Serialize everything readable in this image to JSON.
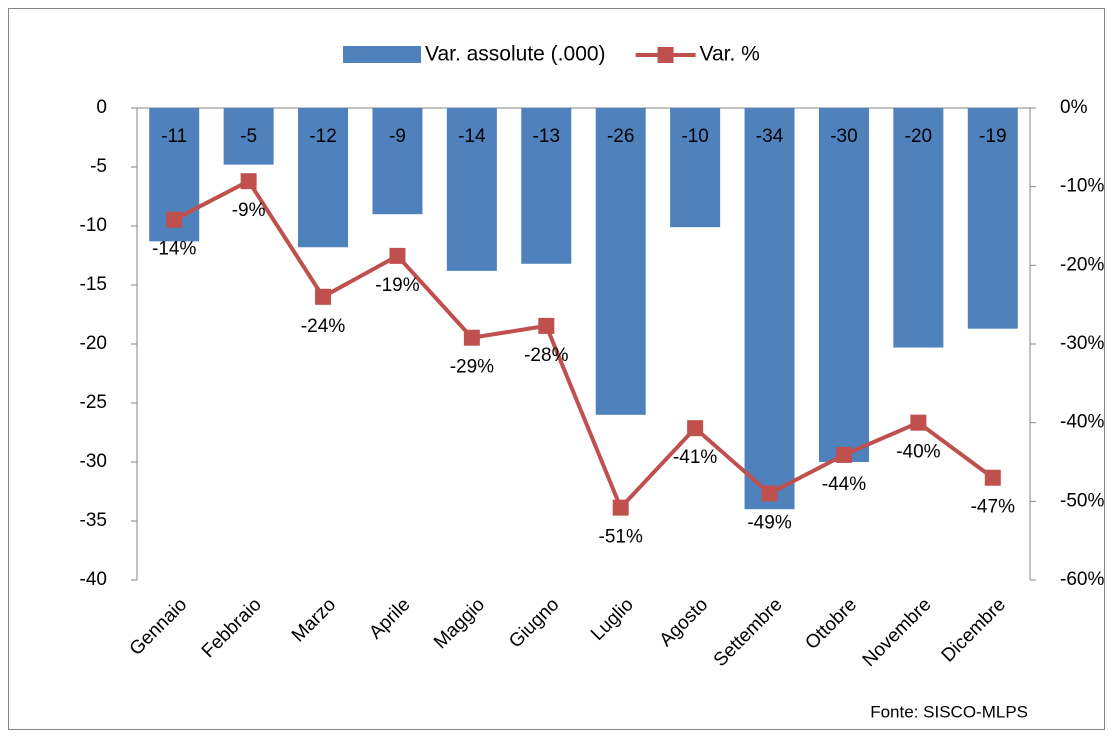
{
  "chart_data": {
    "type": "bar_line",
    "categories": [
      "Gennaio",
      "Febbraio",
      "Marzo",
      "Aprile",
      "Maggio",
      "Giugno",
      "Luglio",
      "Agosto",
      "Settembre",
      "Ottobre",
      "Novembre",
      "Dicembre"
    ],
    "series": [
      {
        "name": "Var. assolute (.000)",
        "color": "#4f81bd",
        "type": "bar",
        "values": [
          -11.3,
          -4.8,
          -11.8,
          -9,
          -13.8,
          -13.2,
          -26,
          -10.1,
          -34,
          -30,
          -20.3,
          -18.7
        ],
        "value_labels": [
          "-11",
          "-5",
          "-12",
          "-9",
          "-14",
          "-13",
          "-26",
          "-10",
          "-34",
          "-30",
          "-20",
          "-19"
        ]
      },
      {
        "name": "Var. %",
        "color": "#c0504d",
        "type": "line",
        "axis": "y2",
        "values": [
          -14.2,
          -9.3,
          -24,
          -18.8,
          -29.2,
          -27.7,
          -50.8,
          -40.7,
          -49,
          -44.1,
          -40,
          -47
        ],
        "value_labels": [
          "-14%",
          "-9%",
          "-24%",
          "-19%",
          "-29%",
          "-28%",
          "-51%",
          "-41%",
          "-49%",
          "-44%",
          "-40%",
          "-47%"
        ]
      }
    ],
    "ylim": [
      -40,
      0
    ],
    "yticks": [
      -40,
      -35,
      -30,
      -25,
      -20,
      -15,
      -10,
      -5,
      0
    ],
    "y2lim": [
      -60,
      0
    ],
    "y2ticks": [
      {
        "value": -60,
        "label": "-60%"
      },
      {
        "value": -50,
        "label": "-50%"
      },
      {
        "value": -40,
        "label": "-40%"
      },
      {
        "value": -30,
        "label": "-30%"
      },
      {
        "value": -20,
        "label": "-20%"
      },
      {
        "value": -10,
        "label": "-10%"
      },
      {
        "value": 0,
        "label": "0%"
      }
    ],
    "legend": "top",
    "source": "Fonte: SISCO-MLPS"
  }
}
